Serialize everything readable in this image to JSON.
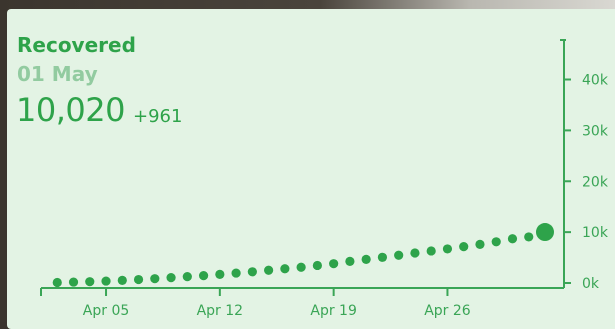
{
  "header": {
    "title": "Recovered",
    "date": "01 May",
    "value": "10,020",
    "delta": "+961"
  },
  "colors": {
    "accent": "#2ea34a",
    "muted": "#92cba0",
    "background": "#e3f3e4",
    "axis": "#3aa556"
  },
  "chart_data": {
    "type": "scatter",
    "title": "Recovered",
    "xlabel": "",
    "ylabel": "",
    "x_tick_labels": [
      "Apr 05",
      "Apr 12",
      "Apr 19",
      "Apr 26"
    ],
    "y_tick_labels": [
      "0k",
      "10k",
      "20k",
      "30k",
      "40k"
    ],
    "ylim": [
      0,
      46000
    ],
    "grid": false,
    "y_axis_side": "right",
    "x_day_range": [
      1,
      31
    ],
    "x_tick_days": [
      5,
      12,
      19,
      26
    ],
    "y_tick_values": [
      0,
      10000,
      20000,
      30000,
      40000
    ],
    "series": [
      {
        "name": "",
        "x": [
          2,
          3,
          4,
          5,
          6,
          7,
          8,
          9,
          10,
          11,
          12,
          13,
          14,
          15,
          16,
          17,
          18,
          19,
          20,
          21,
          22,
          23,
          24,
          25,
          26,
          27,
          28,
          29,
          30,
          31
        ],
        "y": [
          100,
          180,
          260,
          380,
          520,
          680,
          850,
          1050,
          1250,
          1450,
          1700,
          1950,
          2200,
          2500,
          2800,
          3100,
          3450,
          3800,
          4250,
          4650,
          5050,
          5450,
          5900,
          6300,
          6700,
          7150,
          7600,
          8100,
          8700,
          9059
        ],
        "highlight": {
          "x": 32,
          "y": 10020
        }
      }
    ]
  }
}
